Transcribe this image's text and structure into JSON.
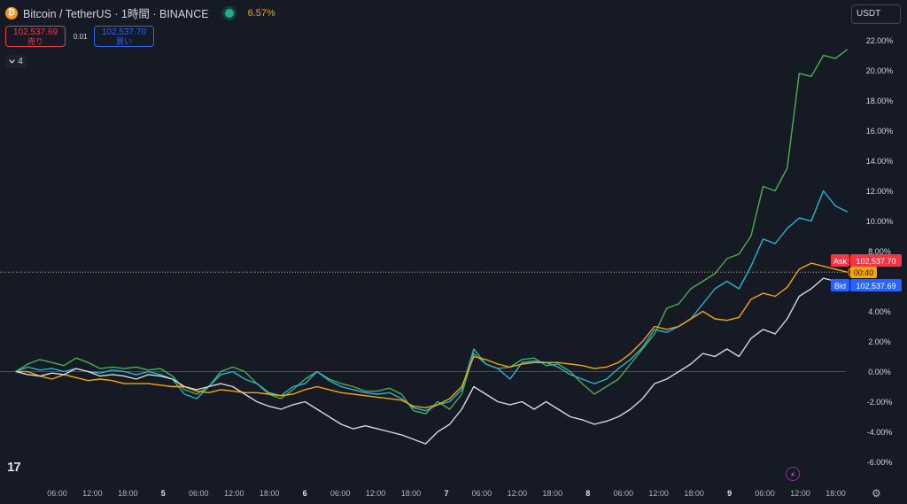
{
  "header": {
    "title": "Bitcoin / TetherUS · 1時間 · BINANCE",
    "coin_glyph": "₿",
    "change": "6.57%"
  },
  "quotes": {
    "sell_price": "102,537.69",
    "sell_label": "売り",
    "spread": "0.01",
    "buy_price": "102,537.70",
    "buy_label": "買い"
  },
  "legend_toggle": {
    "icon": "chevron-down-icon",
    "count": "4"
  },
  "currency": "USDT",
  "price_labels": {
    "ask_tag": "Ask",
    "ask_value": "102,537.70",
    "countdown": "00:40",
    "bid_tag": "Bid",
    "bid_value": "102,537.69"
  },
  "colors": {
    "background": "#161a25",
    "green_series": "#4caf50",
    "cyan_series": "#26b5d4",
    "orange_series": "#f7a600",
    "white_series": "#d8d8d8",
    "ask": "#f23645",
    "bid": "#2962ff"
  },
  "chart_data": {
    "type": "line",
    "y_unit": "%",
    "ylim": [
      -7,
      23
    ],
    "yticks": [
      "22.00%",
      "20.00%",
      "18.00%",
      "16.00%",
      "14.00%",
      "12.00%",
      "10.00%",
      "8.00%",
      "4.00%",
      "2.00%",
      "0.00%",
      "-2.00%",
      "-4.00%",
      "-6.00%"
    ],
    "ytick_values": [
      22,
      20,
      18,
      16,
      14,
      12,
      10,
      8,
      4,
      2,
      0,
      -2,
      -4,
      -6
    ],
    "xticks": [
      "06:00",
      "12:00",
      "18:00",
      "5",
      "06:00",
      "12:00",
      "18:00",
      "6",
      "06:00",
      "12:00",
      "18:00",
      "7",
      "06:00",
      "12:00",
      "18:00",
      "8",
      "06:00",
      "12:00",
      "18:00",
      "9",
      "06:00",
      "12:00",
      "18:00"
    ],
    "xtick_hours": [
      6,
      12,
      18,
      24,
      30,
      36,
      42,
      48,
      54,
      60,
      66,
      72,
      78,
      84,
      90,
      96,
      102,
      108,
      114,
      120,
      126,
      132,
      138
    ],
    "x_hours_start": 0,
    "x_hours_end": 142,
    "series": [
      {
        "color": "#4caf50",
        "values": [
          0.0,
          0.5,
          0.8,
          0.6,
          0.4,
          0.9,
          0.6,
          0.2,
          0.3,
          0.2,
          0.3,
          0.1,
          0.2,
          -0.3,
          -1.2,
          -1.5,
          -1.0,
          0.0,
          0.3,
          0.0,
          -0.8,
          -1.5,
          -1.8,
          -1.2,
          -0.5,
          0.0,
          -0.5,
          -0.8,
          -1.0,
          -1.3,
          -1.3,
          -1.1,
          -1.5,
          -2.6,
          -2.8,
          -2.0,
          -2.5,
          -1.5,
          1.2,
          0.5,
          0.2,
          0.3,
          0.8,
          0.9,
          0.4,
          0.5,
          0.0,
          -0.8,
          -1.5,
          -1.0,
          -0.5,
          0.5,
          1.5,
          2.5,
          4.2,
          4.5,
          5.5,
          6.0,
          6.5,
          7.5,
          7.8,
          9.0,
          12.3,
          12.0,
          13.5,
          19.8,
          19.6,
          21.0,
          20.8,
          21.4
        ]
      },
      {
        "color": "#26b5d4",
        "values": [
          0.0,
          0.3,
          0.1,
          0.2,
          0.0,
          0.2,
          0.0,
          -0.1,
          0.1,
          0.0,
          -0.2,
          0.0,
          -0.2,
          -0.5,
          -1.5,
          -1.8,
          -1.0,
          -0.2,
          0.0,
          -0.5,
          -0.8,
          -1.4,
          -1.6,
          -1.0,
          -0.8,
          0.0,
          -0.6,
          -1.0,
          -1.2,
          -1.4,
          -1.5,
          -1.4,
          -1.8,
          -2.4,
          -2.6,
          -2.2,
          -2.0,
          -1.2,
          1.5,
          0.5,
          0.2,
          -0.5,
          0.6,
          0.7,
          0.6,
          0.3,
          -0.2,
          -0.5,
          -0.8,
          -0.5,
          0.2,
          0.8,
          1.6,
          2.8,
          2.6,
          3.0,
          3.5,
          4.5,
          5.5,
          6.0,
          5.5,
          7.0,
          8.8,
          8.5,
          9.5,
          10.2,
          10.0,
          12.0,
          11.0,
          10.6
        ]
      },
      {
        "color": "#f7a600",
        "values": [
          0.0,
          0.0,
          -0.3,
          -0.5,
          -0.2,
          -0.4,
          -0.6,
          -0.5,
          -0.6,
          -0.8,
          -0.8,
          -0.8,
          -0.9,
          -1.0,
          -1.0,
          -1.3,
          -1.4,
          -1.2,
          -1.3,
          -1.4,
          -1.4,
          -1.5,
          -1.6,
          -1.5,
          -1.2,
          -1.0,
          -1.2,
          -1.4,
          -1.5,
          -1.6,
          -1.7,
          -1.8,
          -1.9,
          -2.3,
          -2.4,
          -2.2,
          -1.8,
          -1.0,
          1.0,
          0.8,
          0.5,
          0.3,
          0.5,
          0.6,
          0.6,
          0.6,
          0.5,
          0.4,
          0.2,
          0.3,
          0.6,
          1.2,
          2.0,
          3.0,
          2.8,
          3.0,
          3.5,
          4.0,
          3.5,
          3.4,
          3.6,
          4.8,
          5.2,
          5.0,
          5.6,
          6.8,
          7.2,
          7.0,
          6.8,
          6.6
        ]
      },
      {
        "color": "#d8d8d8",
        "values": [
          0.0,
          -0.2,
          -0.3,
          -0.1,
          -0.2,
          0.2,
          0.0,
          -0.3,
          -0.2,
          -0.3,
          -0.5,
          -0.2,
          -0.3,
          -0.5,
          -1.0,
          -1.2,
          -1.0,
          -0.8,
          -1.0,
          -1.5,
          -2.0,
          -2.3,
          -2.5,
          -2.2,
          -2.0,
          -2.5,
          -3.0,
          -3.5,
          -3.8,
          -3.6,
          -3.8,
          -4.0,
          -4.2,
          -4.5,
          -4.8,
          -4.0,
          -3.5,
          -2.5,
          -1.0,
          -1.5,
          -2.0,
          -2.2,
          -2.0,
          -2.5,
          -2.0,
          -2.5,
          -3.0,
          -3.2,
          -3.5,
          -3.3,
          -3.0,
          -2.5,
          -1.8,
          -0.8,
          -0.5,
          0.0,
          0.5,
          1.2,
          1.0,
          1.5,
          1.0,
          2.2,
          2.8,
          2.5,
          3.5,
          5.0,
          5.5,
          6.2,
          6.0,
          5.5
        ]
      }
    ],
    "last_price_line_pct": 6.6
  }
}
